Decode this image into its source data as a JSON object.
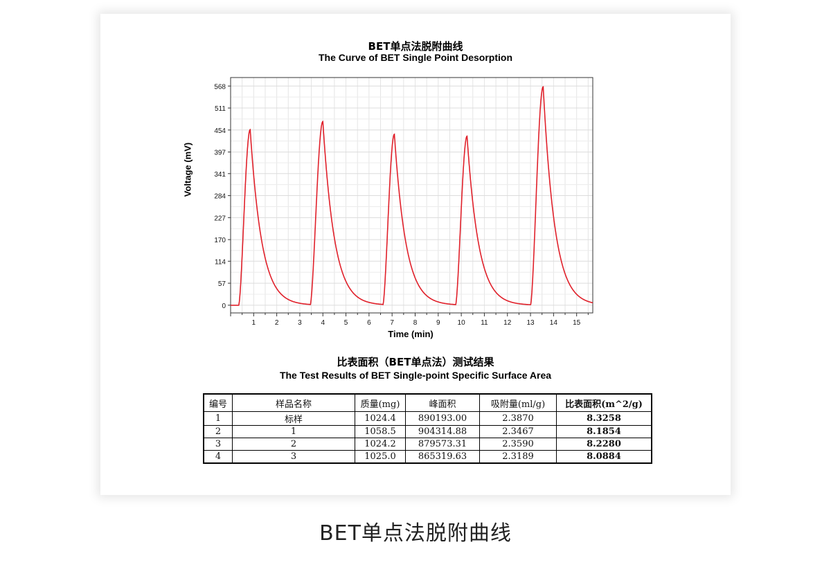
{
  "chart_data": {
    "type": "line",
    "title": "BET单点法脱附曲线",
    "subtitle": "The Curve of BET Single Point Desorption",
    "xlabel": "Time (min)",
    "ylabel": "Voltage (mV)",
    "xlim": [
      0,
      15.7
    ],
    "ylim": [
      -20,
      590
    ],
    "xticks": [
      1,
      2,
      3,
      4,
      5,
      6,
      7,
      8,
      9,
      10,
      11,
      12,
      13,
      14,
      15
    ],
    "yticks": [
      0,
      57,
      114,
      170,
      227,
      284,
      341,
      397,
      454,
      511,
      568
    ],
    "grid": true,
    "color": "#e0202a",
    "peaks": [
      {
        "start": 0.35,
        "x": 0.85,
        "y": 455
      },
      {
        "start": 3.45,
        "x": 4.0,
        "y": 476
      },
      {
        "start": 6.6,
        "x": 7.1,
        "y": 443
      },
      {
        "start": 9.75,
        "x": 10.25,
        "y": 438
      },
      {
        "start": 13.0,
        "x": 13.55,
        "y": 566
      }
    ]
  },
  "table": {
    "title_cn": "比表面积（BET单点法）测试结果",
    "title_en": "The Test Results of BET Single-point Specific Surface Area",
    "headers": [
      "编号",
      "样品名称",
      "质量(mg)",
      "峰面积",
      "吸附量(ml/g)",
      "比表面积(m^2/g)"
    ],
    "rows": [
      [
        "1",
        "标样",
        "1024.4",
        "890193.00",
        "2.3870",
        "8.3258"
      ],
      [
        "2",
        "1",
        "1058.5",
        "904314.88",
        "2.3467",
        "8.1854"
      ],
      [
        "3",
        "2",
        "1024.2",
        "879573.31",
        "2.3590",
        "8.2280"
      ],
      [
        "4",
        "3",
        "1025.0",
        "865319.63",
        "2.3189",
        "8.0884"
      ]
    ]
  },
  "caption": "BET单点法脱附曲线"
}
